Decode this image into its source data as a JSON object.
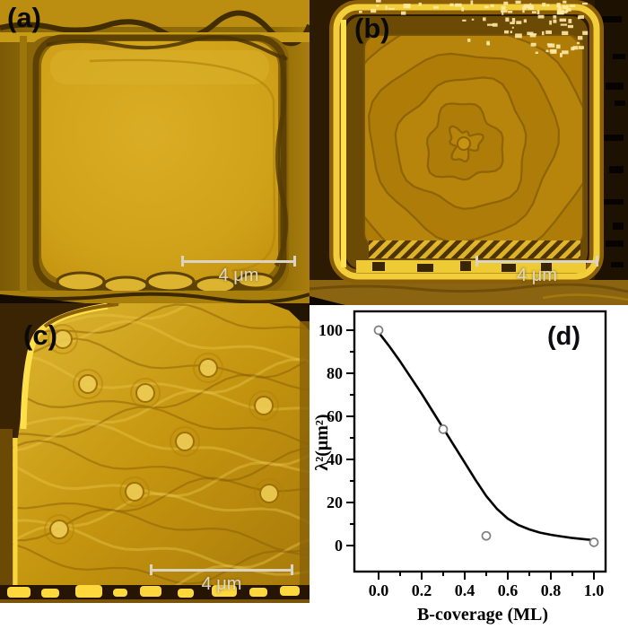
{
  "figure": {
    "panels": {
      "a": {
        "label": "(a)",
        "scale_bar": "4 μm",
        "description": "afm-image-flat-square-mesa"
      },
      "b": {
        "label": "(b)",
        "scale_bar": "4 μm",
        "description": "afm-image-spiral-growth-mesa"
      },
      "c": {
        "label": "(c)",
        "scale_bar": "4 μm",
        "description": "afm-image-step-meander-mesa"
      },
      "d": {
        "label": "(d)",
        "description": "plot-lambda-squared-vs-b-coverage"
      }
    },
    "colors": {
      "afm_gold": "#d0a21a",
      "afm_dark_brown": "#2c1a03",
      "afm_bright_yellow": "#f2cf3a",
      "scalebar": "#d9d4c4",
      "panel_label": "#0a0a0a",
      "chart_background": "#ffffff"
    }
  },
  "chart_data": {
    "type": "scatter",
    "title": "",
    "xlabel": "B-coverage (ML)",
    "ylabel": "λ²(μm²)",
    "xlim": [
      -0.11,
      1.05
    ],
    "ylim": [
      -12,
      109
    ],
    "x_ticks": [
      0.0,
      0.2,
      0.4,
      0.6,
      0.8,
      1.0
    ],
    "x_tick_labels": [
      "0.0",
      "0.2",
      "0.4",
      "0.6",
      "0.8",
      "1.0"
    ],
    "x_minor_ticks": [
      0.1,
      0.3,
      0.5,
      0.7,
      0.9
    ],
    "y_ticks": [
      0,
      20,
      40,
      60,
      80,
      100
    ],
    "y_tick_labels": [
      "0",
      "20",
      "40",
      "60",
      "80",
      "100"
    ],
    "y_minor_ticks": [
      10,
      30,
      50,
      70,
      90
    ],
    "grid": false,
    "legend": "none",
    "marker": "open-circle",
    "marker_color": "#7d7d7d",
    "line_color": "#000000",
    "points": {
      "x": [
        0.0,
        0.3,
        0.5,
        1.0
      ],
      "y": [
        100,
        54,
        4.5,
        1.5
      ]
    },
    "fit_curve": {
      "x": [
        0,
        0.05,
        0.1,
        0.15,
        0.2,
        0.25,
        0.3,
        0.35,
        0.4,
        0.45,
        0.5,
        0.55,
        0.6,
        0.65,
        0.7,
        0.75,
        0.8,
        0.85,
        0.9,
        0.95,
        1.0
      ],
      "y": [
        99,
        92.5,
        85.5,
        78,
        70.5,
        62.5,
        54.5,
        46.5,
        38.5,
        30.5,
        23,
        17,
        12.5,
        9.5,
        7.5,
        6,
        5,
        4.2,
        3.5,
        3,
        2.5
      ]
    }
  }
}
